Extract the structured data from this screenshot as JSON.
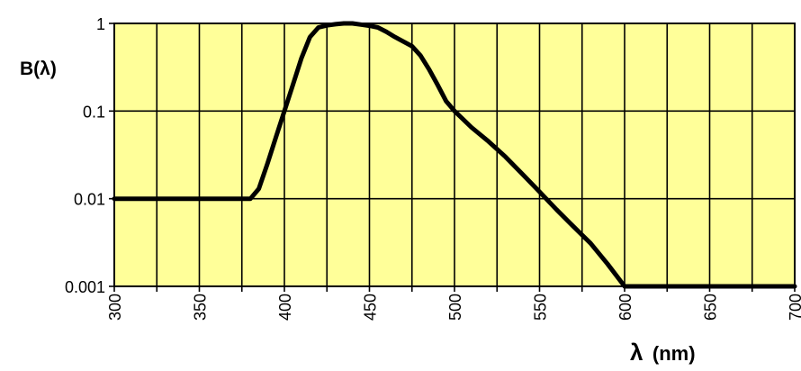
{
  "chart_data": {
    "type": "line",
    "title": "",
    "ylabel": "B(λ)",
    "xlabel_symbol": "λ",
    "xlabel_unit": "(nm)",
    "y_scale": "log",
    "xlim": [
      300,
      700
    ],
    "ylim": [
      0.001,
      1
    ],
    "x_ticks": [
      300,
      350,
      400,
      450,
      500,
      550,
      600,
      650,
      700
    ],
    "x_tick_labels": [
      "300",
      "350",
      "400",
      "450",
      "500",
      "550",
      "600",
      "650",
      "700"
    ],
    "y_ticks": [
      0.001,
      0.01,
      0.1,
      1
    ],
    "y_tick_labels": [
      "0.001",
      "0.01",
      "0.1",
      "1"
    ],
    "x_minor_step": 25,
    "grid": true,
    "plot_background": "#ffff99",
    "line_color": "#000000",
    "series": [
      {
        "x": [
          300,
          380,
          385,
          390,
          395,
          400,
          405,
          410,
          415,
          420,
          425,
          430,
          435,
          440,
          445,
          450,
          455,
          460,
          465,
          470,
          475,
          480,
          485,
          490,
          495,
          500,
          510,
          520,
          530,
          540,
          550,
          560,
          570,
          580,
          590,
          600,
          650,
          700
        ],
        "y": [
          0.01,
          0.01,
          0.013,
          0.025,
          0.05,
          0.1,
          0.2,
          0.4,
          0.7,
          0.9,
          0.95,
          0.98,
          1,
          1,
          0.97,
          0.94,
          0.9,
          0.8,
          0.7,
          0.62,
          0.55,
          0.43,
          0.3,
          0.2,
          0.13,
          0.1,
          0.065,
          0.045,
          0.03,
          0.019,
          0.012,
          0.0075,
          0.0048,
          0.0031,
          0.0018,
          0.001,
          0.001,
          0.001
        ]
      }
    ]
  }
}
